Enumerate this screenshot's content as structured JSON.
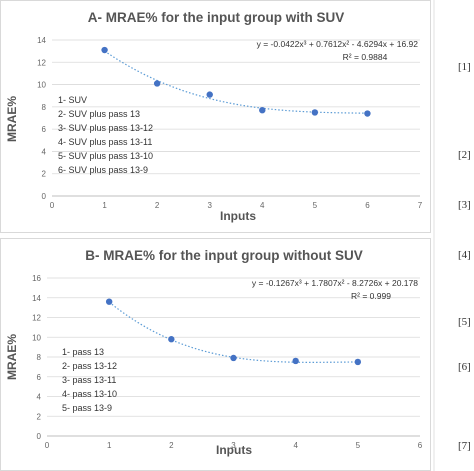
{
  "chart_data": [
    {
      "type": "scatter",
      "title": "A- MRAE% for the input group with SUV",
      "xlabel": "Inputs",
      "ylabel": "MRAE%",
      "xlim": [
        0,
        7
      ],
      "ylim": [
        0,
        14
      ],
      "x_ticks": [
        "0",
        "1",
        "2",
        "3",
        "4",
        "5",
        "6",
        "7"
      ],
      "y_ticks": [
        "0",
        "2",
        "4",
        "6",
        "8",
        "10",
        "12",
        "14"
      ],
      "grid": true,
      "x": [
        1,
        2,
        3,
        4,
        5,
        6
      ],
      "y": [
        13.1,
        10.1,
        9.1,
        7.7,
        7.5,
        7.4
      ],
      "trendline": {
        "type": "polynomial",
        "coefficients": [
          -0.0422,
          0.7612,
          -4.6294,
          16.92
        ]
      },
      "equation": "y = -0.0422x³ + 0.7612x² - 4.6294x + 16.92",
      "r2": "R² = 0.9884",
      "legend": [
        "1- SUV",
        "2- SUV plus pass 13",
        "3- SUV plus pass 13-12",
        "4- SUV plus pass 13-11",
        "5- SUV plus pass 13-10",
        "6- SUV plus pass 13-9"
      ],
      "color": "#4472c4"
    },
    {
      "type": "scatter",
      "title": "B- MRAE% for the input group without SUV",
      "xlabel": "Inputs",
      "ylabel": "MRAE%",
      "xlim": [
        0,
        6
      ],
      "ylim": [
        0,
        16
      ],
      "x_ticks": [
        "0",
        "1",
        "2",
        "3",
        "4",
        "5",
        "6"
      ],
      "y_ticks": [
        "0",
        "2",
        "4",
        "6",
        "8",
        "10",
        "12",
        "14",
        "16"
      ],
      "grid": true,
      "x": [
        1,
        2,
        3,
        4,
        5
      ],
      "y": [
        13.6,
        9.8,
        7.9,
        7.6,
        7.5
      ],
      "trendline": {
        "type": "polynomial",
        "coefficients": [
          -0.1267,
          1.7807,
          -8.2726,
          20.178
        ]
      },
      "equation": "y = -0.1267x³ + 1.7807x² - 8.2726x + 20.178",
      "r2": "R² = 0.999",
      "legend": [
        "1- pass 13",
        "2- pass 13-12",
        "3- pass 13-11",
        "4- pass 13-10",
        "5- pass 13-9"
      ],
      "color": "#4472c4"
    }
  ],
  "side_refs": [
    "[1]",
    "[2]",
    "[3]",
    "[4]",
    "[5]",
    "[6]",
    "[7]"
  ]
}
